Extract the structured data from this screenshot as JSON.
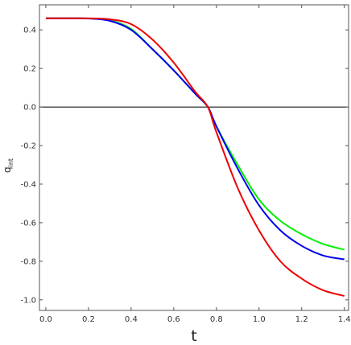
{
  "chart_data": {
    "type": "line",
    "title": "",
    "xlabel": "t",
    "ylabel": "q",
    "ylabel_subscript": "int",
    "xlim": [
      -0.03,
      1.42
    ],
    "ylim": [
      -1.055,
      0.53
    ],
    "x_ticks": [
      0.0,
      0.2,
      0.4,
      0.6,
      0.8,
      1.0,
      1.2,
      1.4
    ],
    "y_ticks": [
      0.4,
      0.2,
      0.0,
      -0.2,
      -0.4,
      -0.6,
      -0.8,
      -1.0
    ],
    "x_tick_labels": [
      "0.0",
      "0.2",
      "0.4",
      "0.6",
      "0.8",
      "1.0",
      "1.2",
      "1.4"
    ],
    "y_tick_labels": [
      "0.4",
      "0.2",
      "0.0",
      "-0.2",
      "-0.4",
      "-0.6",
      "-0.8",
      "-1.0"
    ],
    "zero_line": true,
    "grid": false,
    "legend": "none",
    "series": [
      {
        "color": "#00ee00",
        "x": [
          0.0,
          0.1,
          0.2,
          0.3,
          0.4,
          0.5,
          0.6,
          0.7,
          0.76,
          0.8,
          0.9,
          1.0,
          1.1,
          1.2,
          1.3,
          1.4
        ],
        "y": [
          0.46,
          0.46,
          0.459,
          0.45,
          0.405,
          0.3,
          0.19,
          0.07,
          0.0,
          -0.1,
          -0.3,
          -0.48,
          -0.59,
          -0.66,
          -0.71,
          -0.74
        ]
      },
      {
        "color": "#0000ee",
        "x": [
          0.0,
          0.1,
          0.2,
          0.3,
          0.4,
          0.5,
          0.6,
          0.7,
          0.76,
          0.8,
          0.9,
          1.0,
          1.1,
          1.2,
          1.3,
          1.4
        ],
        "y": [
          0.46,
          0.46,
          0.459,
          0.447,
          0.4,
          0.3,
          0.19,
          0.07,
          0.0,
          -0.1,
          -0.32,
          -0.51,
          -0.64,
          -0.72,
          -0.77,
          -0.79
        ]
      },
      {
        "color": "#ee0000",
        "x": [
          0.0,
          0.1,
          0.2,
          0.3,
          0.4,
          0.5,
          0.6,
          0.7,
          0.76,
          0.8,
          0.9,
          1.0,
          1.1,
          1.2,
          1.3,
          1.4
        ],
        "y": [
          0.46,
          0.46,
          0.46,
          0.455,
          0.43,
          0.35,
          0.23,
          0.08,
          0.0,
          -0.13,
          -0.42,
          -0.64,
          -0.8,
          -0.89,
          -0.95,
          -0.98
        ]
      }
    ]
  }
}
